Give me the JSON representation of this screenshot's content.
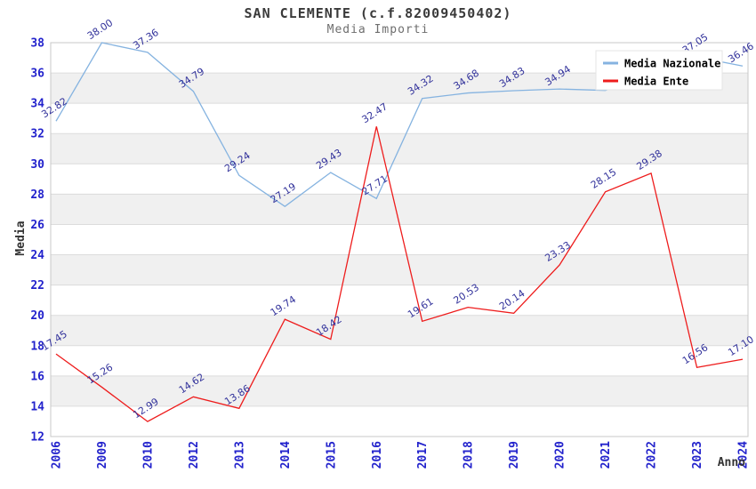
{
  "header": {
    "title": "SAN CLEMENTE (c.f.82009450402)",
    "subtitle": "Media Importi"
  },
  "chart_data": {
    "type": "line",
    "title": "SAN CLEMENTE (c.f.82009450402)",
    "subtitle": "Media Importi",
    "xlabel": "Anno",
    "ylabel": "Media",
    "ylim": [
      12,
      38
    ],
    "y_tick_step": 2,
    "y_ticks": [
      12,
      14,
      16,
      18,
      20,
      22,
      24,
      26,
      28,
      30,
      32,
      34,
      36,
      38
    ],
    "categories": [
      "2006",
      "2009",
      "2010",
      "2012",
      "2013",
      "2014",
      "2015",
      "2016",
      "2017",
      "2018",
      "2019",
      "2020",
      "2021",
      "2022",
      "2023",
      "2024"
    ],
    "grid": "horizontal-with-alternating-bands",
    "legend_position": "top-right",
    "series": [
      {
        "name": "Media Nazionale",
        "color": "#85b3e0",
        "values": [
          32.82,
          38.0,
          37.36,
          34.79,
          29.24,
          27.19,
          29.43,
          27.71,
          34.32,
          34.68,
          34.83,
          34.94,
          34.85,
          35.9,
          37.05,
          36.46
        ],
        "labels": [
          "32.82",
          "38.00",
          "37.36",
          "34.79",
          "29.24",
          "27.19",
          "29.43",
          "27.71",
          "34.32",
          "34.68",
          "34.83",
          "34.94",
          null,
          null,
          "37.05",
          "36.46"
        ]
      },
      {
        "name": "Media Ente",
        "color": "#ee1c1c",
        "values": [
          17.45,
          15.26,
          12.99,
          14.62,
          13.86,
          19.74,
          18.42,
          32.47,
          19.61,
          20.53,
          20.14,
          23.33,
          28.15,
          29.38,
          16.56,
          17.1
        ],
        "labels": [
          "17.45",
          "15.26",
          "12.99",
          "14.62",
          "13.86",
          "19.74",
          "18.42",
          "32.47",
          "19.61",
          "20.53",
          "20.14",
          "23.33",
          "28.15",
          "29.38",
          "16.56",
          "17.10"
        ]
      }
    ],
    "style": {
      "axis_tick_color": "#2222cc",
      "data_label_color": "#32329b",
      "grid_color": "#dcdcdc",
      "frame_color": "#c8c8c8",
      "band_color": "#f0f0f0",
      "band_alt_color": "#ffffff",
      "legend_bg": "#ffffff",
      "legend_border": "#e4e4e4",
      "legend_text_color": "#000000",
      "axis_title_color": "#333333"
    }
  }
}
